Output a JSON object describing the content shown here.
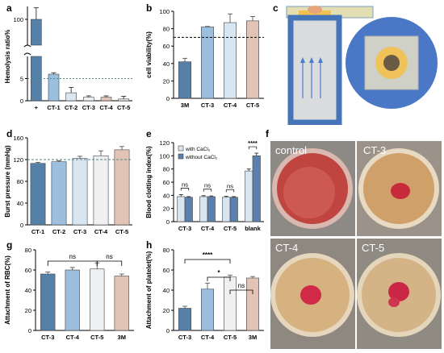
{
  "panel_letters": {
    "a": "a",
    "b": "b",
    "c": "c",
    "d": "d",
    "e": "e",
    "f": "f",
    "g": "g",
    "h": "h"
  },
  "colors": {
    "dark_blue": "#5581a9",
    "mid_blue": "#9cbfe0",
    "light_blue": "#d8e6f2",
    "very_light": "#eef0f2",
    "peach": "#e2c4b7",
    "dashed_green": "#4a8a8a"
  },
  "chart_data": [
    {
      "id": "a",
      "type": "bar",
      "ylabel": "Hemolysis ratio%",
      "categories": [
        "+",
        "CT-1",
        "CT-2",
        "CT-3",
        "CT-4",
        "CT-5"
      ],
      "values": [
        100,
        6,
        1.8,
        0.8,
        0.8,
        0.4
      ],
      "errors": [
        18,
        0.3,
        1.2,
        0.3,
        0.3,
        0.6
      ],
      "y_ticks_lower": [
        "0",
        "5"
      ],
      "y_ticks_upper": [
        "100"
      ],
      "y_break": true,
      "reference_line": 5
    },
    {
      "id": "b",
      "type": "bar",
      "ylabel": "cell viability(%)",
      "categories": [
        "3M",
        "CT-3",
        "CT-4",
        "CT-5"
      ],
      "values": [
        42,
        82,
        87,
        89
      ],
      "errors": [
        4,
        0.6,
        10,
        5
      ],
      "ylim": [
        0,
        100
      ],
      "y_ticks": [
        "0",
        "20",
        "40",
        "60",
        "80",
        "100"
      ],
      "reference_line": 70
    },
    {
      "id": "d",
      "type": "bar",
      "ylabel": "Burst pressure (mmHg)",
      "categories": [
        "CT-1",
        "CT-2",
        "CT-3",
        "CT-4",
        "CT-5"
      ],
      "values": [
        113,
        116,
        122,
        127,
        138
      ],
      "errors": [
        2,
        2,
        4,
        9,
        6
      ],
      "ylim": [
        0,
        160
      ],
      "y_ticks": [
        "0",
        "40",
        "80",
        "120",
        "160"
      ],
      "reference_line": 120
    },
    {
      "id": "e",
      "type": "bar",
      "ylabel": "Blood clotting index(%)",
      "categories": [
        "CT-3",
        "CT-4",
        "CT-5",
        "blank"
      ],
      "series": [
        {
          "name": "with CaCl₂",
          "values": [
            38,
            38,
            37,
            77
          ],
          "errors": [
            3,
            1.5,
            1.5,
            3
          ]
        },
        {
          "name": "without CaCl₂",
          "values": [
            37,
            38,
            37,
            100
          ],
          "errors": [
            1,
            1,
            1,
            4
          ]
        }
      ],
      "ylim": [
        0,
        120
      ],
      "y_ticks": [
        "0",
        "20",
        "40",
        "60",
        "80",
        "100",
        "120"
      ],
      "significance": [
        "ns",
        "ns",
        "ns",
        "****"
      ]
    },
    {
      "id": "g",
      "type": "bar",
      "ylabel": "Attachment of RBC(%)",
      "categories": [
        "CT-3",
        "CT-4",
        "CT-5",
        "3M"
      ],
      "values": [
        56,
        60,
        61,
        54
      ],
      "errors": [
        2,
        2.5,
        6,
        2
      ],
      "ylim": [
        0,
        80
      ],
      "y_ticks": [
        "0",
        "20",
        "40",
        "60",
        "80"
      ],
      "significance": [
        "ns",
        "ns"
      ]
    },
    {
      "id": "h",
      "type": "bar",
      "ylabel": "Attachment of platelet(%)",
      "categories": [
        "CT-3",
        "CT-4",
        "CT-5",
        "3M"
      ],
      "values": [
        22,
        41,
        53,
        52
      ],
      "errors": [
        2,
        6,
        2,
        1.5
      ],
      "ylim": [
        0,
        80
      ],
      "y_ticks": [
        "0",
        "20",
        "40",
        "60",
        "80"
      ],
      "significance": [
        "****",
        "*",
        "ns"
      ]
    }
  ],
  "photos": {
    "labels": [
      "control",
      "CT-3",
      "CT-4",
      "CT-5"
    ]
  }
}
